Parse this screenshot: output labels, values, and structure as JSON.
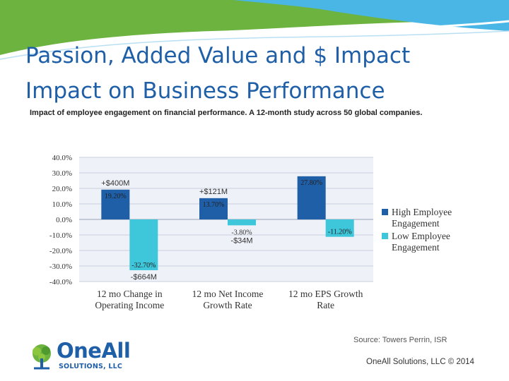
{
  "slide": {
    "title_line1": "Passion, Added Value and $ Impact",
    "title_line2": "Impact on Business Performance",
    "subtitle": "Impact of employee engagement on financial performance. A 12-month study across 50 global companies.",
    "source": "Source: Towers Perrin, ISR",
    "footer": "OneAll Solutions, LLC © 2014",
    "colors": {
      "title": "#1f5fa8",
      "high": "#1f5fa8",
      "low": "#3ec6da",
      "swoosh_green": "#6cb33f",
      "swoosh_blue": "#49b6e6"
    }
  },
  "logo": {
    "name": "OneAll",
    "tagline": "SOLUTIONS, LLC"
  },
  "chart_data": {
    "type": "bar",
    "title": "",
    "xlabel": "",
    "ylabel": "",
    "ylim": [
      -40,
      40
    ],
    "yticks": [
      40,
      30,
      20,
      10,
      0,
      -10,
      -20,
      -30,
      -40
    ],
    "ytick_labels": [
      "40.0%",
      "30.0%",
      "20.0%",
      "10.0%",
      "0.0%",
      "-10.0%",
      "-20.0%",
      "-30.0%",
      "-40.0%"
    ],
    "grid": true,
    "legend": "right",
    "categories": [
      [
        "12 mo Change in",
        "Operating Income"
      ],
      [
        "12 mo Net Income",
        "Growth Rate"
      ],
      [
        "12 mo EPS Growth",
        "Rate"
      ]
    ],
    "series": [
      {
        "name": [
          "High Employee",
          "Engagement"
        ],
        "color": "#1f5fa8",
        "values": [
          19.2,
          13.7,
          27.8
        ],
        "labels": [
          "19.20%",
          "13.70%",
          "27.80%"
        ],
        "annotations": [
          "+$400M",
          "+$121M",
          ""
        ]
      },
      {
        "name": [
          "Low Employee",
          "Engagement"
        ],
        "color": "#3ec6da",
        "values": [
          -32.7,
          -3.8,
          -11.2
        ],
        "labels": [
          "-32.70%",
          "-3.80%",
          "-11.20%"
        ],
        "annotations": [
          "-$664M",
          "-$34M",
          ""
        ]
      }
    ]
  }
}
